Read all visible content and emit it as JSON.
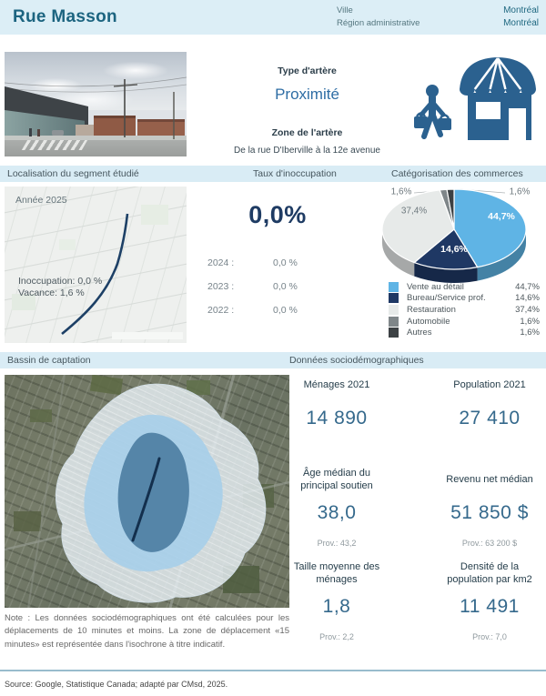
{
  "header": {
    "title": "Rue Masson",
    "fields": [
      {
        "label": "Ville",
        "value": "Montréal"
      },
      {
        "label": "Région administrative",
        "value": "Montréal"
      }
    ]
  },
  "artery": {
    "type_label": "Type d'artère",
    "type_value": "Proximité",
    "zone_label": "Zone de l'artère",
    "zone_value": "De la rue D'Iberville à la 12e avenue"
  },
  "section_headers": {
    "localisation": "Localisation du segment étudié",
    "taux": "Taux d'inoccupation",
    "categorisation": "Catégorisation des commerces",
    "bassin": "Bassin de captation",
    "sociodemo": "Données sociodémographiques"
  },
  "localisation_map": {
    "year": "Année 2025",
    "inoccupation": "Inoccupation: 0,0 %",
    "vacance": "Vacance: 1,6 %"
  },
  "taux_inoccupation": {
    "current": "0,0%",
    "history": [
      {
        "year": "2024 :",
        "value": "0,0 %"
      },
      {
        "year": "2023 :",
        "value": "0,0 %"
      },
      {
        "year": "2022 :",
        "value": "0,0 %"
      }
    ]
  },
  "chart_data": {
    "type": "pie",
    "style": "3d",
    "title": "Catégorisation des commerces",
    "labels": [
      "Vente au détail",
      "Bureau/Service prof.",
      "Restauration",
      "Automobile",
      "Autres"
    ],
    "values": [
      44.7,
      14.6,
      37.4,
      1.6,
      1.6
    ],
    "display_values": [
      "44,7%",
      "14,6%",
      "37,4%",
      "1,6%",
      "1,6%"
    ],
    "colors": [
      "#5fb4e5",
      "#1f3864",
      "#e7eae9",
      "#7f8689",
      "#3c4144"
    ],
    "legend_position": "bottom"
  },
  "demographics": {
    "cards": [
      {
        "label": "Ménages 2021",
        "value": "14 890"
      },
      {
        "label": "Population 2021",
        "value": "27 410"
      },
      {
        "label": "Âge médian du principal soutien",
        "value": "38,0",
        "prov": "Prov.: 43,2"
      },
      {
        "label": "Revenu net médian",
        "value": "51 850 $",
        "prov": "Prov.: 63 200 $"
      },
      {
        "label": "Taille moyenne des ménages",
        "value": "1,8",
        "prov": "Prov.: 2,2"
      },
      {
        "label": "Densité de la population par km2",
        "value": "11 491",
        "prov": "Prov.: 7,0"
      }
    ]
  },
  "note": "Note : Les données sociodémographiques ont été calculées pour les déplacements de 10 minutes et moins. La zone de déplacement «15 minutes» est représentée dans l'isochrone à titre indicatif.",
  "source": "Source: Google, Statistique Canada; adapté par CMsd, 2025."
}
